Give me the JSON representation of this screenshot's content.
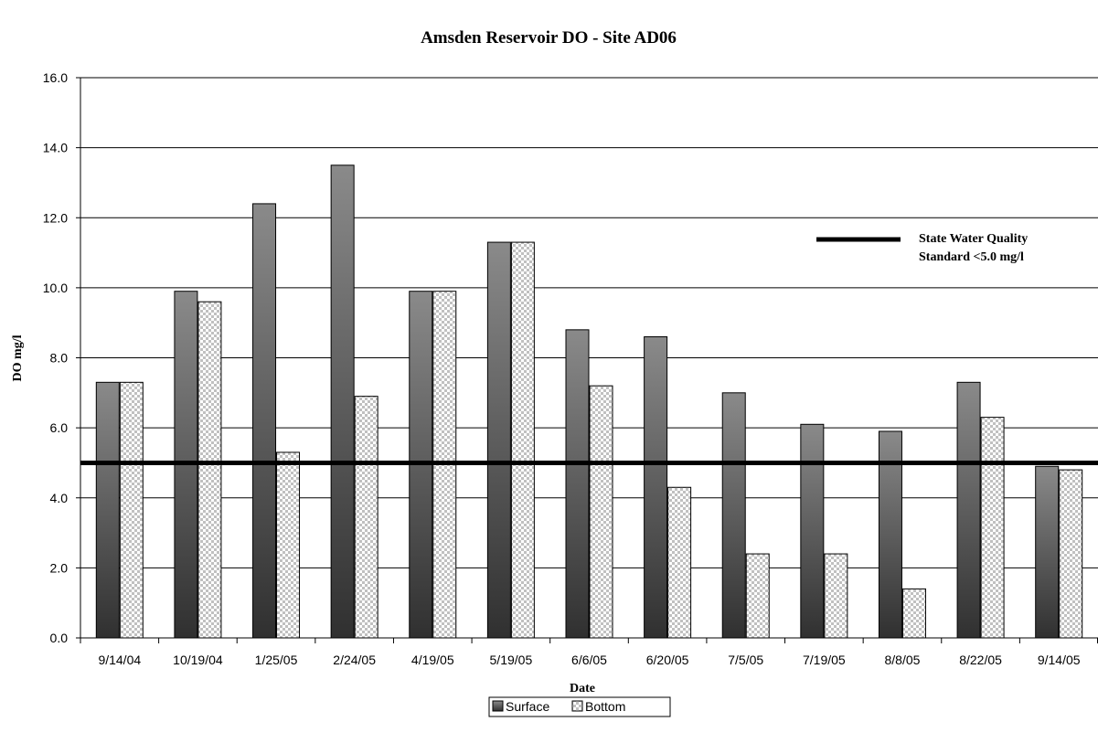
{
  "chart_data": {
    "type": "bar",
    "title": "Amsden Reservoir DO - Site AD06",
    "xlabel": "Date",
    "ylabel": "DO mg/l",
    "ylim": [
      0,
      16
    ],
    "yticks": [
      "0.0",
      "2.0",
      "4.0",
      "6.0",
      "8.0",
      "10.0",
      "12.0",
      "14.0",
      "16.0"
    ],
    "grid": true,
    "legend_position": "bottom",
    "categories": [
      "9/14/04",
      "10/19/04",
      "1/25/05",
      "2/24/05",
      "4/19/05",
      "5/19/05",
      "6/6/05",
      "6/20/05",
      "7/5/05",
      "7/19/05",
      "8/8/05",
      "8/22/05",
      "9/14/05"
    ],
    "series": [
      {
        "name": "Surface",
        "values": [
          7.3,
          9.9,
          12.4,
          13.5,
          9.9,
          11.3,
          8.8,
          8.6,
          7.0,
          6.1,
          5.9,
          7.3,
          4.9
        ]
      },
      {
        "name": "Bottom",
        "values": [
          7.3,
          9.6,
          5.3,
          6.9,
          9.9,
          11.3,
          7.2,
          4.3,
          2.4,
          2.4,
          1.4,
          6.3,
          4.8
        ]
      }
    ],
    "reference_line": {
      "value": 5.0,
      "label_line1": "State Water Quality",
      "label_line2": "Standard <5.0 mg/l"
    }
  },
  "colors": {
    "surface_top": "#8a8a8a",
    "surface_bottom": "#303030",
    "bottom_pattern_a": "#ffffff",
    "bottom_pattern_b": "#c0c0c0",
    "reference_line": "#000000"
  }
}
